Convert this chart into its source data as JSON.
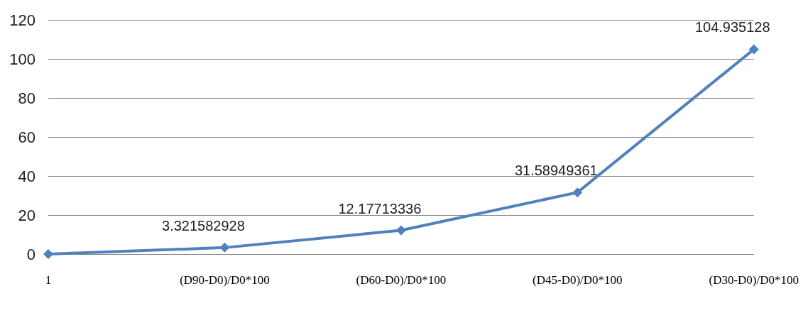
{
  "chart_data": {
    "type": "line",
    "categories": [
      "1",
      "(D90-D0)/D0*100",
      "(D60-D0)/D0*100",
      "(D45-D0)/D0*100",
      "(D30-D0)/D0*100"
    ],
    "series": [
      {
        "color": "#4f81bd",
        "values": [
          0,
          3.321582928,
          12.17713336,
          31.58949361,
          104.935128
        ],
        "value_labels": [
          null,
          "3.321582928",
          "12.17713336",
          "31.58949361",
          "104.935128"
        ]
      }
    ],
    "ylim": [
      0,
      120
    ],
    "yticks": [
      0,
      20,
      40,
      60,
      80,
      100,
      120
    ],
    "grid": "y",
    "marker": "diamond",
    "line_style": "solid"
  }
}
